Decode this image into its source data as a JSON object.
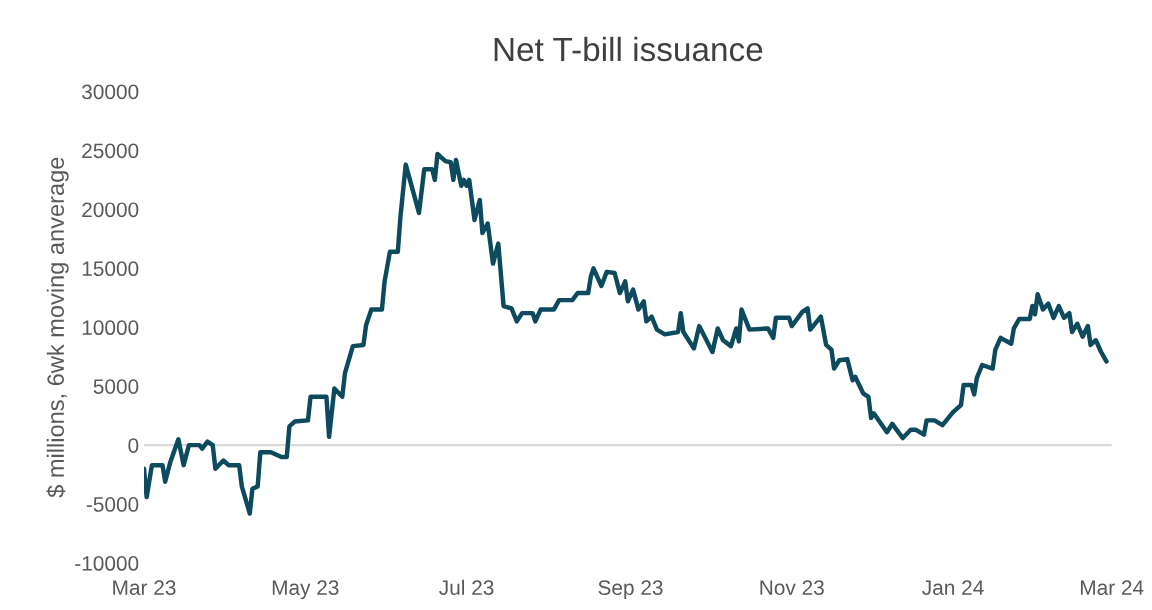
{
  "chart_data": {
    "type": "line",
    "title": "Net T-bill issuance",
    "ylabel": "$ millions, 6wk moving anverage",
    "x": [
      "2023-03-01",
      "2023-03-02",
      "2023-03-04",
      "2023-03-08",
      "2023-03-09",
      "2023-03-11",
      "2023-03-14",
      "2023-03-16",
      "2023-03-18",
      "2023-03-22",
      "2023-03-23",
      "2023-03-25",
      "2023-03-27",
      "2023-03-28",
      "2023-03-31",
      "2023-04-02",
      "2023-04-06",
      "2023-04-07",
      "2023-04-10",
      "2023-04-11",
      "2023-04-13",
      "2023-04-14",
      "2023-04-18",
      "2023-04-22",
      "2023-04-24",
      "2023-04-25",
      "2023-04-27",
      "2023-05-02",
      "2023-05-03",
      "2023-05-09",
      "2023-05-10",
      "2023-05-12",
      "2023-05-15",
      "2023-05-16",
      "2023-05-19",
      "2023-05-23",
      "2023-05-24",
      "2023-05-26",
      "2023-05-30",
      "2023-05-31",
      "2023-06-02",
      "2023-06-05",
      "2023-06-06",
      "2023-06-08",
      "2023-06-13",
      "2023-06-15",
      "2023-06-18",
      "2023-06-19",
      "2023-06-20",
      "2023-06-23",
      "2023-06-25",
      "2023-06-26",
      "2023-06-27",
      "2023-06-29",
      "2023-06-30",
      "2023-07-01",
      "2023-07-02",
      "2023-07-04",
      "2023-07-06",
      "2023-07-07",
      "2023-07-09",
      "2023-07-11",
      "2023-07-13",
      "2023-07-15",
      "2023-07-18",
      "2023-07-20",
      "2023-07-22",
      "2023-07-26",
      "2023-07-27",
      "2023-07-29",
      "2023-08-03",
      "2023-08-05",
      "2023-08-10",
      "2023-08-12",
      "2023-08-16",
      "2023-08-17",
      "2023-08-18",
      "2023-08-21",
      "2023-08-23",
      "2023-08-26",
      "2023-08-28",
      "2023-08-30",
      "2023-08-31",
      "2023-09-02",
      "2023-09-04",
      "2023-09-06",
      "2023-09-07",
      "2023-09-09",
      "2023-09-11",
      "2023-09-14",
      "2023-09-19",
      "2023-09-20",
      "2023-09-21",
      "2023-09-25",
      "2023-09-27",
      "2023-10-02",
      "2023-10-04",
      "2023-10-06",
      "2023-10-09",
      "2023-10-11",
      "2023-10-12",
      "2023-10-13",
      "2023-10-16",
      "2023-10-23",
      "2023-10-25",
      "2023-10-26",
      "2023-10-31",
      "2023-11-01",
      "2023-11-05",
      "2023-11-07",
      "2023-11-08",
      "2023-11-12",
      "2023-11-14",
      "2023-11-16",
      "2023-11-17",
      "2023-11-19",
      "2023-11-22",
      "2023-11-24",
      "2023-11-25",
      "2023-11-28",
      "2023-11-30",
      "2023-12-01",
      "2023-12-02",
      "2023-12-07",
      "2023-12-09",
      "2023-12-13",
      "2023-12-16",
      "2023-12-18",
      "2023-12-21",
      "2023-12-22",
      "2023-12-25",
      "2023-12-28",
      "2024-01-01",
      "2024-01-04",
      "2024-01-05",
      "2024-01-08",
      "2024-01-09",
      "2024-01-10",
      "2024-01-12",
      "2024-01-16",
      "2024-01-17",
      "2024-01-19",
      "2024-01-23",
      "2024-01-24",
      "2024-01-26",
      "2024-01-30",
      "2024-01-31",
      "2024-02-01",
      "2024-02-02",
      "2024-02-04",
      "2024-02-06",
      "2024-02-08",
      "2024-02-10",
      "2024-02-12",
      "2024-02-14",
      "2024-02-15",
      "2024-02-17",
      "2024-02-19",
      "2024-02-21",
      "2024-02-22",
      "2024-02-24",
      "2024-02-26",
      "2024-02-28"
    ],
    "series": [
      {
        "color": "#0d4a5e",
        "values": [
          -2000,
          -4400,
          -1700,
          -1700,
          -3100,
          -1400,
          500,
          -1700,
          0,
          0,
          -300,
          300,
          0,
          -2000,
          -1300,
          -1700,
          -1700,
          -3500,
          -5800,
          -3700,
          -3500,
          -600,
          -600,
          -1000,
          -1000,
          1600,
          2000,
          2100,
          4100,
          4100,
          700,
          4800,
          4100,
          6100,
          8400,
          8500,
          10200,
          11500,
          11500,
          13900,
          16400,
          16400,
          19400,
          23800,
          19700,
          23400,
          23400,
          22500,
          24700,
          24100,
          24000,
          22500,
          24200,
          22000,
          22500,
          22000,
          22500,
          19100,
          20800,
          18000,
          18800,
          15400,
          17100,
          11800,
          11600,
          10500,
          11200,
          11200,
          10500,
          11500,
          11500,
          12300,
          12300,
          12900,
          12900,
          14300,
          15000,
          13500,
          14700,
          14600,
          12900,
          13900,
          12200,
          13200,
          11500,
          12200,
          10500,
          10900,
          9800,
          9400,
          9600,
          11200,
          9600,
          8200,
          10100,
          7900,
          9900,
          8900,
          8400,
          9900,
          8800,
          11500,
          9800,
          9900,
          9100,
          10800,
          10800,
          10100,
          11300,
          11600,
          9800,
          10900,
          8500,
          8100,
          6500,
          7200,
          7300,
          5500,
          5800,
          4400,
          4100,
          2300,
          2700,
          1100,
          1800,
          600,
          1300,
          1300,
          900,
          2100,
          2100,
          1700,
          2800,
          3400,
          5100,
          5100,
          4300,
          5700,
          6800,
          6500,
          8100,
          9100,
          8600,
          9900,
          10700,
          10700,
          11800,
          11100,
          12800,
          11500,
          12000,
          10800,
          11800,
          10800,
          11200,
          9600,
          10300,
          9200,
          10100,
          8500,
          8900,
          7900,
          7100
        ]
      }
    ],
    "xlim": [
      "2023-03-01",
      "2024-03-01"
    ],
    "xticks": [
      {
        "value": "2023-03-01",
        "label": "Mar 23"
      },
      {
        "value": "2023-05-01",
        "label": "May 23"
      },
      {
        "value": "2023-07-01",
        "label": "Jul 23"
      },
      {
        "value": "2023-09-01",
        "label": "Sep 23"
      },
      {
        "value": "2023-11-01",
        "label": "Nov 23"
      },
      {
        "value": "2024-01-01",
        "label": "Jan 24"
      },
      {
        "value": "2024-03-01",
        "label": "Mar 24"
      }
    ],
    "ylim": [
      -10000,
      30000
    ],
    "yticks": [
      -10000,
      -5000,
      0,
      5000,
      10000,
      15000,
      20000,
      25000,
      30000
    ],
    "ref_lines": [
      {
        "axis": "y",
        "value": 0,
        "color": "#d9d9d9"
      }
    ],
    "grid": false,
    "legend": false,
    "line_style": "solid",
    "marker": "none"
  }
}
